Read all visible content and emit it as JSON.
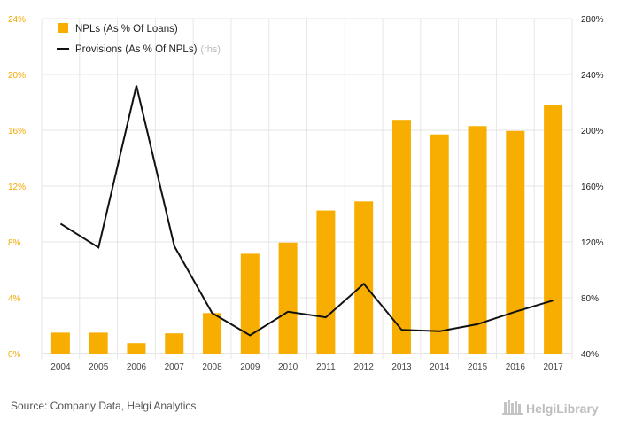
{
  "chart_data": {
    "type": "bar+line",
    "categories": [
      "2004",
      "2005",
      "2006",
      "2007",
      "2008",
      "2009",
      "2010",
      "2011",
      "2012",
      "2013",
      "2014",
      "2015",
      "2016",
      "2017"
    ],
    "series": [
      {
        "name": "NPLs (As % Of Loans)",
        "type": "bar",
        "axis": "left",
        "color": "#f7ae00",
        "values": [
          1.5,
          1.5,
          0.75,
          1.45,
          2.9,
          7.15,
          7.95,
          10.25,
          10.9,
          16.75,
          15.7,
          16.3,
          15.95,
          17.8
        ]
      },
      {
        "name": "Provisions (As % Of NPLs)",
        "name_suffix": "(rhs)",
        "type": "line",
        "axis": "right",
        "color": "#111111",
        "values": [
          133,
          116,
          232,
          117,
          69,
          53,
          70,
          66,
          90,
          57,
          56,
          61,
          70,
          78
        ]
      }
    ],
    "y_left": {
      "min": 0,
      "max": 24,
      "ticks": [
        "0%",
        "4%",
        "8%",
        "12%",
        "16%",
        "20%",
        "24%"
      ]
    },
    "y_right": {
      "min": 40,
      "max": 280,
      "ticks": [
        "40%",
        "80%",
        "120%",
        "160%",
        "200%",
        "240%",
        "280%"
      ]
    },
    "grid": true,
    "legend": "top-left"
  },
  "footer": {
    "source": "Source: Company Data, Helgi Analytics",
    "brand": "HelgiLibrary"
  },
  "colors": {
    "bar": "#f7ae00",
    "line": "#111111",
    "grid": "#e6e6e6",
    "left_tick": "#f2a900"
  }
}
